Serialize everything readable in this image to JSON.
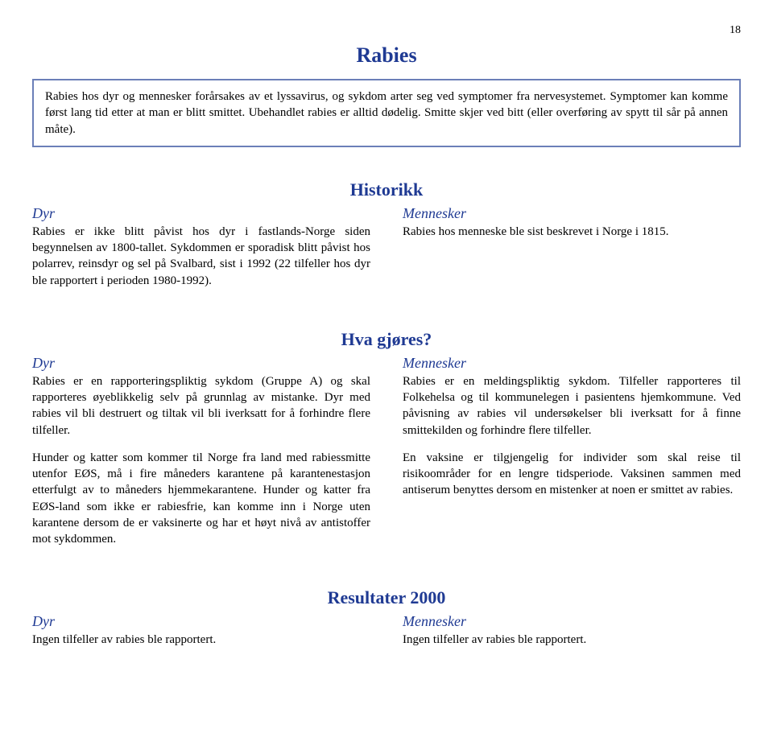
{
  "pageNumber": "18",
  "mainTitle": "Rabies",
  "colors": {
    "headingBlue": "#1f3a93",
    "boxBorder": "#6b7fb8",
    "bodyText": "#000000",
    "background": "#ffffff"
  },
  "infoBox": "Rabies hos dyr og mennesker forårsakes av et lyssavirus, og sykdom arter seg ved symptomer fra nervesystemet. Symptomer kan komme først lang tid etter at man er blitt smittet. Ubehandlet rabies er alltid dødelig. Smitte skjer ved bitt (eller overføring av spytt til sår på annen måte).",
  "historikk": {
    "heading": "Historikk",
    "dyr": {
      "label": "Dyr",
      "text": "Rabies er ikke blitt påvist hos dyr i fastlands-Norge siden begynnelsen av 1800-tallet. Sykdommen er sporadisk blitt påvist hos polarrev, reinsdyr og sel på Svalbard, sist i 1992 (22 tilfeller hos dyr ble rapportert i perioden 1980-1992)."
    },
    "mennesker": {
      "label": "Mennesker",
      "text": "Rabies hos menneske ble sist beskrevet i Norge i 1815."
    }
  },
  "hvaGjores": {
    "heading": "Hva gjøres?",
    "dyr": {
      "label": "Dyr",
      "para1": "Rabies er en rapporteringspliktig sykdom (Gruppe A) og skal rapporteres øyeblikkelig selv på grunnlag av mistanke. Dyr med rabies vil bli destruert og tiltak vil bli iverksatt for å forhindre flere tilfeller.",
      "para2": "Hunder og katter som kommer til Norge fra land med rabiessmitte utenfor EØS, må i fire måneders karantene på karantenestasjon etterfulgt av to måneders hjemmekarantene. Hunder og katter fra EØS-land som ikke er rabiesfrie, kan komme inn i Norge uten karantene dersom de er vaksinerte og har et høyt nivå av antistoffer mot sykdommen."
    },
    "mennesker": {
      "label": "Mennesker",
      "para1": "Rabies er en meldingspliktig sykdom. Tilfeller rapporteres til Folkehelsa og til kommunelegen i pasientens hjemkommune. Ved påvisning av rabies vil undersøkelser bli iverksatt for å finne smittekilden og forhindre flere tilfeller.",
      "para2": "En vaksine er tilgjengelig for individer som skal reise til risikoområder for en lengre tidsperiode. Vaksinen sammen med antiserum benyttes dersom en mistenker at noen er smittet av rabies."
    }
  },
  "resultater": {
    "heading": "Resultater 2000",
    "dyr": {
      "label": "Dyr",
      "text": "Ingen tilfeller av rabies ble rapportert."
    },
    "mennesker": {
      "label": "Mennesker",
      "text": "Ingen tilfeller av rabies ble rapportert."
    }
  }
}
